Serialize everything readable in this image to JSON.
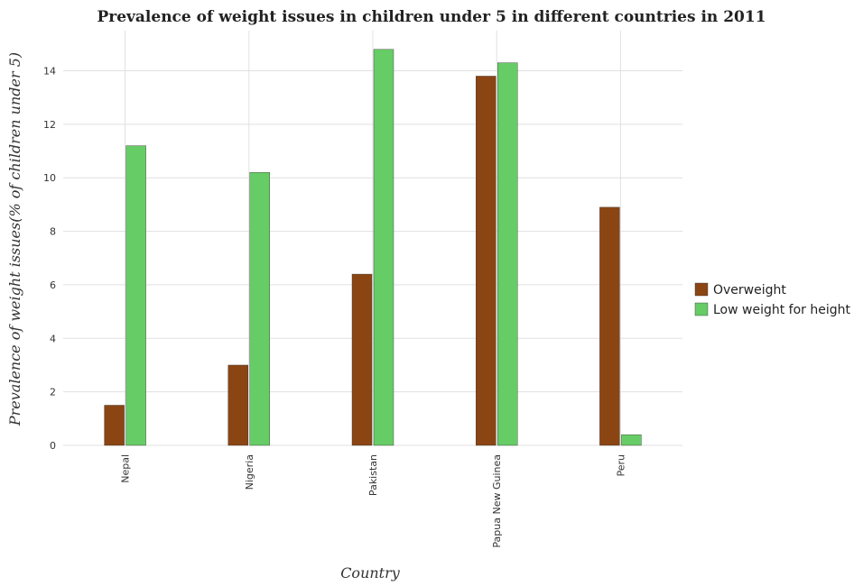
{
  "chart_data": {
    "type": "bar",
    "title": "Prevalence of weight issues in children under 5 in different countries in 2011",
    "xlabel": "Country",
    "ylabel": "Prevalence of weight issues(% of children under 5)",
    "categories": [
      "Nepal",
      "Nigeria",
      "Pakistan",
      "Papua New Guinea",
      "Peru"
    ],
    "series": [
      {
        "name": "Overweight",
        "values": [
          1.5,
          3.0,
          6.4,
          13.8,
          8.9
        ],
        "color": "#8B4513"
      },
      {
        "name": "Low weight for height",
        "values": [
          11.2,
          10.2,
          14.8,
          14.3,
          0.4
        ],
        "color": "#66CC66"
      }
    ],
    "ylim": [
      0,
      15.5
    ],
    "yticks": [
      0,
      2,
      4,
      6,
      8,
      10,
      12,
      14
    ],
    "grid": true,
    "legend_position": "right"
  }
}
